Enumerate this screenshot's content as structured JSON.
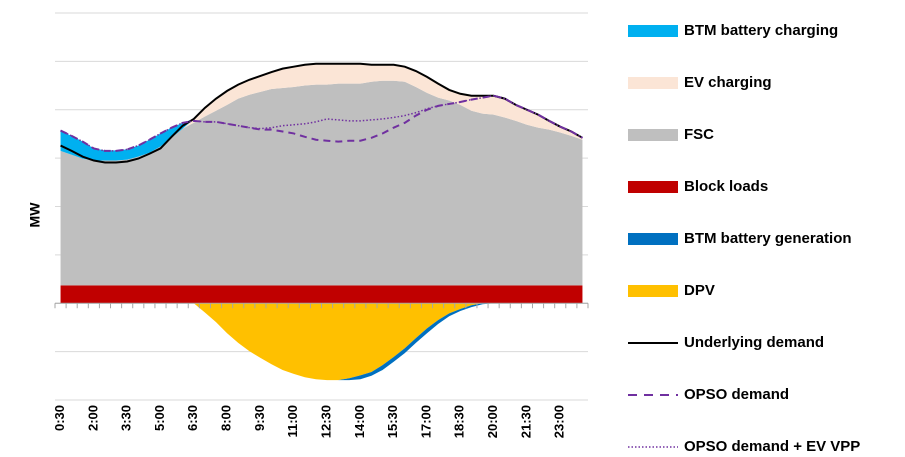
{
  "chart_data": {
    "type": "area",
    "y_label": "MW",
    "categories": [
      "0:30",
      null,
      null,
      "2:00",
      null,
      null,
      "3:30",
      null,
      null,
      "5:00",
      null,
      null,
      "6:30",
      null,
      null,
      "8:00",
      null,
      null,
      "9:30",
      null,
      null,
      "11:00",
      null,
      null,
      "12:30",
      null,
      null,
      "14:00",
      null,
      null,
      "15:30",
      null,
      null,
      "17:00",
      null,
      null,
      "18:30",
      null,
      null,
      "20:00",
      null,
      null,
      "21:30",
      null,
      null,
      "23:00",
      null,
      null
    ],
    "ylim": [
      -2,
      6
    ],
    "yticks": [
      -2,
      -1,
      0,
      1,
      2,
      3,
      4,
      5,
      6
    ],
    "grid": true,
    "legend": "right",
    "series": [
      {
        "name": "BTM battery charging",
        "type": "area",
        "color": "#00b0f0",
        "values": [
          0.41,
          0.39,
          0.35,
          0.25,
          0.21,
          0.21,
          0.21,
          0.23,
          0.27,
          0.27,
          0.21,
          0.12,
          0,
          0,
          0,
          0,
          0,
          0,
          0,
          0,
          0,
          0,
          0,
          0,
          0,
          0,
          0,
          0,
          0,
          0,
          0,
          0,
          0,
          0,
          0,
          0,
          0,
          0,
          0,
          0,
          0,
          0,
          0,
          0,
          0,
          0,
          0,
          0
        ]
      },
      {
        "name": "EV charging",
        "type": "area",
        "color": "#fbe5d6",
        "values": [
          0,
          0,
          0,
          0,
          0,
          0,
          0,
          0,
          0,
          0,
          0,
          0,
          0.08,
          0.19,
          0.25,
          0.29,
          0.29,
          0.31,
          0.33,
          0.35,
          0.39,
          0.41,
          0.43,
          0.43,
          0.43,
          0.41,
          0.41,
          0.41,
          0.35,
          0.33,
          0.33,
          0.31,
          0.33,
          0.33,
          0.29,
          0.23,
          0.23,
          0.31,
          0.37,
          0.39,
          0.39,
          0.33,
          0.31,
          0.27,
          0.19,
          0.12,
          0.08,
          0.04
        ]
      },
      {
        "name": "FSC",
        "type": "area",
        "color": "#bfbfbf",
        "values": [
          2.78,
          2.7,
          2.62,
          2.58,
          2.58,
          2.58,
          2.6,
          2.66,
          2.74,
          2.87,
          3.05,
          3.24,
          3.36,
          3.49,
          3.61,
          3.73,
          3.86,
          3.94,
          4.0,
          4.06,
          4.08,
          4.1,
          4.13,
          4.15,
          4.15,
          4.17,
          4.17,
          4.17,
          4.21,
          4.23,
          4.23,
          4.21,
          4.1,
          3.98,
          3.88,
          3.82,
          3.73,
          3.61,
          3.55,
          3.53,
          3.47,
          3.4,
          3.32,
          3.26,
          3.22,
          3.16,
          3.09,
          3.01
        ]
      },
      {
        "name": "Block loads",
        "type": "area",
        "color": "#c00000",
        "values": [
          0.37,
          0.37,
          0.37,
          0.37,
          0.37,
          0.37,
          0.37,
          0.37,
          0.37,
          0.37,
          0.37,
          0.37,
          0.37,
          0.37,
          0.37,
          0.37,
          0.37,
          0.37,
          0.37,
          0.37,
          0.37,
          0.37,
          0.37,
          0.37,
          0.37,
          0.37,
          0.37,
          0.37,
          0.37,
          0.37,
          0.37,
          0.37,
          0.37,
          0.37,
          0.37,
          0.37,
          0.37,
          0.37,
          0.37,
          0.37,
          0.37,
          0.37,
          0.37,
          0.37,
          0.37,
          0.37,
          0.37,
          0.37
        ]
      },
      {
        "name": "BTM battery generation",
        "type": "area",
        "color": "#0070c0",
        "values": [
          0,
          0,
          0,
          0,
          0,
          0,
          0,
          0,
          0,
          0,
          0,
          0,
          0,
          0,
          0,
          0,
          0,
          0,
          0,
          0,
          0,
          0,
          0,
          0,
          0,
          0,
          -0.04,
          -0.08,
          -0.08,
          -0.1,
          -0.1,
          -0.1,
          -0.1,
          -0.1,
          -0.08,
          -0.06,
          -0.04,
          -0.04,
          -0.02,
          0,
          0,
          0,
          0,
          0,
          0,
          0,
          0,
          0
        ]
      },
      {
        "name": "DPV",
        "type": "area",
        "color": "#ffc000",
        "values": [
          0,
          0,
          0,
          0,
          0,
          0,
          0,
          0,
          0,
          0,
          0,
          0,
          0,
          -0.19,
          -0.39,
          -0.62,
          -0.82,
          -0.99,
          -1.13,
          -1.26,
          -1.38,
          -1.46,
          -1.53,
          -1.57,
          -1.59,
          -1.59,
          -1.55,
          -1.49,
          -1.42,
          -1.28,
          -1.11,
          -0.93,
          -0.72,
          -0.52,
          -0.35,
          -0.21,
          -0.12,
          -0.04,
          0,
          0,
          0,
          0,
          0,
          0,
          0,
          0,
          0,
          0
        ]
      },
      {
        "name": "Underlying demand",
        "type": "line",
        "dash": "solid",
        "color": "#000000",
        "values": [
          3.26,
          3.15,
          3.03,
          2.95,
          2.91,
          2.91,
          2.93,
          2.99,
          3.09,
          3.2,
          3.44,
          3.67,
          3.81,
          4.04,
          4.23,
          4.39,
          4.52,
          4.62,
          4.7,
          4.78,
          4.85,
          4.89,
          4.93,
          4.95,
          4.95,
          4.95,
          4.95,
          4.95,
          4.93,
          4.93,
          4.93,
          4.89,
          4.8,
          4.68,
          4.54,
          4.41,
          4.33,
          4.29,
          4.29,
          4.29,
          4.23,
          4.1,
          4.0,
          3.9,
          3.77,
          3.65,
          3.55,
          3.42
        ]
      },
      {
        "name": "OPSO demand",
        "type": "line",
        "dash": "dashed",
        "color": "#7030a0",
        "values": [
          3.57,
          3.46,
          3.34,
          3.2,
          3.15,
          3.15,
          3.18,
          3.26,
          3.38,
          3.51,
          3.63,
          3.73,
          3.77,
          3.75,
          3.75,
          3.71,
          3.67,
          3.63,
          3.59,
          3.59,
          3.55,
          3.51,
          3.44,
          3.38,
          3.36,
          3.34,
          3.36,
          3.36,
          3.42,
          3.51,
          3.63,
          3.73,
          3.88,
          4.0,
          4.08,
          4.12,
          4.16,
          4.21,
          4.25,
          4.29,
          4.23,
          4.1,
          4.0,
          3.9,
          3.77,
          3.65,
          3.55,
          3.42
        ]
      },
      {
        "name": "OPSO demand + EV VPP",
        "type": "line",
        "dash": "dotted",
        "color": "#7030a0",
        "values": [
          3.57,
          3.46,
          3.34,
          3.2,
          3.15,
          3.15,
          3.18,
          3.26,
          3.38,
          3.51,
          3.63,
          3.73,
          3.77,
          3.75,
          3.75,
          3.71,
          3.67,
          3.63,
          3.61,
          3.63,
          3.67,
          3.69,
          3.71,
          3.75,
          3.81,
          3.79,
          3.77,
          3.77,
          3.79,
          3.81,
          3.84,
          3.88,
          3.94,
          4.02,
          4.08,
          4.12,
          4.16,
          4.21,
          4.25,
          4.29,
          4.23,
          4.1,
          4.0,
          3.9,
          3.77,
          3.65,
          3.55,
          3.42
        ]
      }
    ]
  }
}
